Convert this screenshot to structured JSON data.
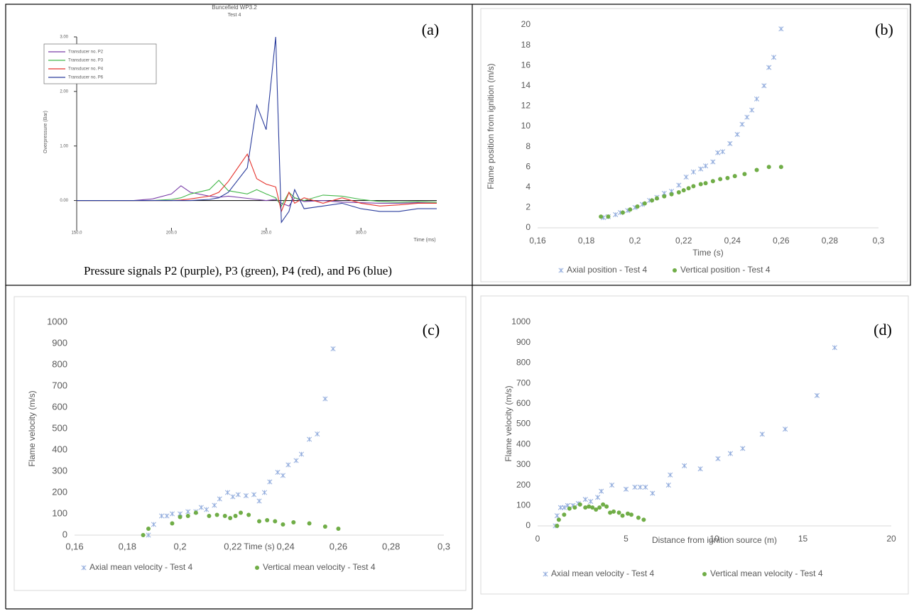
{
  "chart_data": [
    {
      "type": "line",
      "panel_label": "(a)",
      "title": "Buncefield WP3.2",
      "subtitle": "Test 4",
      "xlabel": "Time (ms)",
      "ylabel": "Overpressure (Bar)",
      "caption": "Pressure signals P2 (purple), P3 (green), P4 (red), and P6 (blue)",
      "xlim": [
        150,
        340
      ],
      "ylim": [
        -0.5,
        3.0
      ],
      "xticks": [
        {
          "value": 150,
          "label": "150.0"
        },
        {
          "value": 200,
          "label": "200.0"
        },
        {
          "value": 250,
          "label": "250.0"
        },
        {
          "value": 300,
          "label": "300.0"
        }
      ],
      "yticks": [
        {
          "value": 0,
          "label": "0.00"
        },
        {
          "value": 1,
          "label": "1.00"
        },
        {
          "value": 2,
          "label": "2.00"
        },
        {
          "value": 3,
          "label": "3.00"
        }
      ],
      "x": [
        150,
        160,
        170,
        180,
        190,
        200,
        205,
        210,
        220,
        225,
        230,
        240,
        245,
        250,
        255,
        258,
        262,
        265,
        270,
        280,
        290,
        300,
        310,
        320,
        330,
        340
      ],
      "series": [
        {
          "name": "Transducer no. P2",
          "color": "#7a3fa8",
          "values": [
            0,
            0,
            0,
            0,
            0.03,
            0.12,
            0.27,
            0.15,
            0.08,
            0.06,
            0.08,
            0.04,
            0.02,
            0.0,
            0.02,
            -0.05,
            -0.1,
            0.05,
            -0.02,
            0.0,
            -0.03,
            -0.04,
            -0.05,
            -0.05,
            -0.04,
            -0.05
          ]
        },
        {
          "name": "Transducer no. P3",
          "color": "#44b84a",
          "values": [
            0,
            0,
            0,
            0,
            0,
            0.02,
            0.05,
            0.12,
            0.2,
            0.37,
            0.18,
            0.12,
            0.2,
            0.12,
            0.05,
            -0.1,
            0.15,
            0.05,
            0.0,
            0.1,
            0.08,
            0.02,
            -0.02,
            -0.03,
            -0.02,
            -0.03
          ]
        },
        {
          "name": "Transducer no. P4",
          "color": "#e5312a",
          "values": [
            0,
            0,
            0,
            0,
            0,
            0,
            0.01,
            0.03,
            0.08,
            0.15,
            0.35,
            0.85,
            0.4,
            0.3,
            0.25,
            -0.2,
            0.15,
            -0.05,
            0.05,
            -0.05,
            0.05,
            -0.05,
            -0.1,
            -0.08,
            -0.05,
            -0.05
          ]
        },
        {
          "name": "Transducer no. P6",
          "color": "#2a3c9c",
          "values": [
            0,
            0,
            0,
            0,
            0,
            0,
            0,
            0,
            0.02,
            0.05,
            0.15,
            0.6,
            1.75,
            1.3,
            3.0,
            -0.4,
            -0.2,
            0.2,
            -0.15,
            -0.1,
            -0.05,
            -0.15,
            -0.2,
            -0.2,
            -0.15,
            -0.15
          ]
        }
      ]
    },
    {
      "type": "scatter",
      "panel_label": "(b)",
      "xlabel": "Time (s)",
      "ylabel": "Flame position from ignition (m/s)",
      "xlim": [
        0.16,
        0.3
      ],
      "ylim": [
        0,
        20
      ],
      "xticks": [
        {
          "value": 0.16,
          "label": "0,16"
        },
        {
          "value": 0.18,
          "label": "0,18"
        },
        {
          "value": 0.2,
          "label": "0,2"
        },
        {
          "value": 0.22,
          "label": "0,22"
        },
        {
          "value": 0.24,
          "label": "0,24"
        },
        {
          "value": 0.26,
          "label": "0,26"
        },
        {
          "value": 0.28,
          "label": "0,28"
        },
        {
          "value": 0.3,
          "label": "0,3"
        }
      ],
      "yticks": [
        0,
        2,
        4,
        6,
        8,
        10,
        12,
        14,
        16,
        18,
        20
      ],
      "series": [
        {
          "name": "Axial position - Test 4",
          "color": "#8faadc",
          "marker": "x",
          "x": [
            0.187,
            0.189,
            0.192,
            0.194,
            0.197,
            0.2,
            0.203,
            0.206,
            0.209,
            0.212,
            0.215,
            0.218,
            0.221,
            0.224,
            0.227,
            0.229,
            0.232,
            0.234,
            0.236,
            0.239,
            0.242,
            0.244,
            0.246,
            0.248,
            0.25,
            0.253,
            0.255,
            0.257,
            0.26
          ],
          "values": [
            1.0,
            1.1,
            1.3,
            1.5,
            1.7,
            2.0,
            2.3,
            2.7,
            3.0,
            3.4,
            3.6,
            4.2,
            5.0,
            5.5,
            5.8,
            6.1,
            6.5,
            7.4,
            7.5,
            8.3,
            9.2,
            10.2,
            10.9,
            11.6,
            12.7,
            14.0,
            15.8,
            16.8,
            19.6
          ]
        },
        {
          "name": "Vertical position - Test 4",
          "color": "#70ad47",
          "marker": "o",
          "x": [
            0.186,
            0.189,
            0.195,
            0.198,
            0.201,
            0.204,
            0.207,
            0.209,
            0.212,
            0.215,
            0.218,
            0.22,
            0.222,
            0.224,
            0.227,
            0.229,
            0.232,
            0.235,
            0.238,
            0.241,
            0.245,
            0.25,
            0.255,
            0.26
          ],
          "values": [
            1.1,
            1.1,
            1.5,
            1.8,
            2.1,
            2.4,
            2.7,
            2.9,
            3.1,
            3.3,
            3.5,
            3.7,
            3.9,
            4.1,
            4.3,
            4.4,
            4.6,
            4.8,
            4.9,
            5.1,
            5.3,
            5.7,
            6.0,
            6.0
          ]
        }
      ]
    },
    {
      "type": "scatter",
      "panel_label": "(c)",
      "xlabel": "Time (s)",
      "ylabel": "Flame velocity (m/s)",
      "xlim": [
        0.16,
        0.3
      ],
      "ylim": [
        0,
        1000
      ],
      "xticks": [
        {
          "value": 0.16,
          "label": "0,16"
        },
        {
          "value": 0.18,
          "label": "0,18"
        },
        {
          "value": 0.2,
          "label": "0,2"
        },
        {
          "value": 0.22,
          "label": "0,22"
        },
        {
          "value": 0.24,
          "label": "0,24"
        },
        {
          "value": 0.26,
          "label": "0,26"
        },
        {
          "value": 0.28,
          "label": "0,28"
        },
        {
          "value": 0.3,
          "label": "0,3"
        }
      ],
      "yticks": [
        0,
        100,
        200,
        300,
        400,
        500,
        600,
        700,
        800,
        900,
        1000
      ],
      "series": [
        {
          "name": "Axial mean velocity - Test 4",
          "color": "#8faadc",
          "marker": "x",
          "x": [
            0.188,
            0.19,
            0.193,
            0.195,
            0.197,
            0.2,
            0.203,
            0.206,
            0.208,
            0.21,
            0.213,
            0.215,
            0.218,
            0.22,
            0.222,
            0.225,
            0.228,
            0.23,
            0.232,
            0.234,
            0.237,
            0.239,
            0.241,
            0.244,
            0.246,
            0.249,
            0.252,
            0.255,
            0.258
          ],
          "values": [
            0,
            50,
            90,
            90,
            100,
            100,
            110,
            110,
            130,
            120,
            140,
            170,
            200,
            180,
            190,
            185,
            190,
            160,
            200,
            250,
            295,
            280,
            330,
            350,
            380,
            450,
            475,
            640,
            875
          ]
        },
        {
          "name": "Vertical mean velocity - Test 4",
          "color": "#70ad47",
          "marker": "o",
          "x": [
            0.186,
            0.188,
            0.197,
            0.2,
            0.203,
            0.206,
            0.211,
            0.214,
            0.217,
            0.219,
            0.221,
            0.223,
            0.226,
            0.23,
            0.233,
            0.236,
            0.239,
            0.243,
            0.249,
            0.255,
            0.26
          ],
          "values": [
            0,
            30,
            55,
            85,
            90,
            105,
            90,
            95,
            90,
            80,
            90,
            105,
            95,
            65,
            70,
            65,
            50,
            60,
            55,
            40,
            30
          ]
        }
      ]
    },
    {
      "type": "scatter",
      "panel_label": "(d)",
      "xlabel": "Distance from ignition source (m)",
      "ylabel": "Flame velocity (m/s)",
      "xlim": [
        0,
        20
      ],
      "ylim": [
        0,
        1000
      ],
      "xticks": [
        0,
        5,
        10,
        15,
        20
      ],
      "yticks": [
        0,
        100,
        200,
        300,
        400,
        500,
        600,
        700,
        800,
        900,
        1000
      ],
      "series": [
        {
          "name": "Axial mean velocity - Test 4",
          "color": "#8faadc",
          "marker": "x",
          "x": [
            1.0,
            1.1,
            1.3,
            1.5,
            1.7,
            2.0,
            2.3,
            2.7,
            3.0,
            3.4,
            3.6,
            4.2,
            5.0,
            5.5,
            5.8,
            6.1,
            6.5,
            7.4,
            7.5,
            8.3,
            9.2,
            10.2,
            10.9,
            11.6,
            12.7,
            14.0,
            15.8,
            16.8
          ],
          "values": [
            0,
            50,
            90,
            90,
            100,
            100,
            110,
            130,
            120,
            140,
            170,
            200,
            180,
            190,
            190,
            190,
            160,
            200,
            250,
            295,
            280,
            330,
            355,
            380,
            450,
            475,
            640,
            875
          ]
        },
        {
          "name": "Vertical mean velocity - Test 4",
          "color": "#70ad47",
          "marker": "o",
          "x": [
            1.1,
            1.2,
            1.5,
            1.8,
            2.1,
            2.4,
            2.7,
            2.9,
            3.1,
            3.3,
            3.5,
            3.7,
            3.9,
            4.1,
            4.3,
            4.6,
            4.8,
            5.1,
            5.3,
            5.7,
            6.0
          ],
          "values": [
            0,
            30,
            55,
            85,
            90,
            105,
            90,
            95,
            90,
            80,
            90,
            105,
            95,
            65,
            70,
            65,
            50,
            60,
            55,
            40,
            30
          ]
        }
      ]
    }
  ]
}
